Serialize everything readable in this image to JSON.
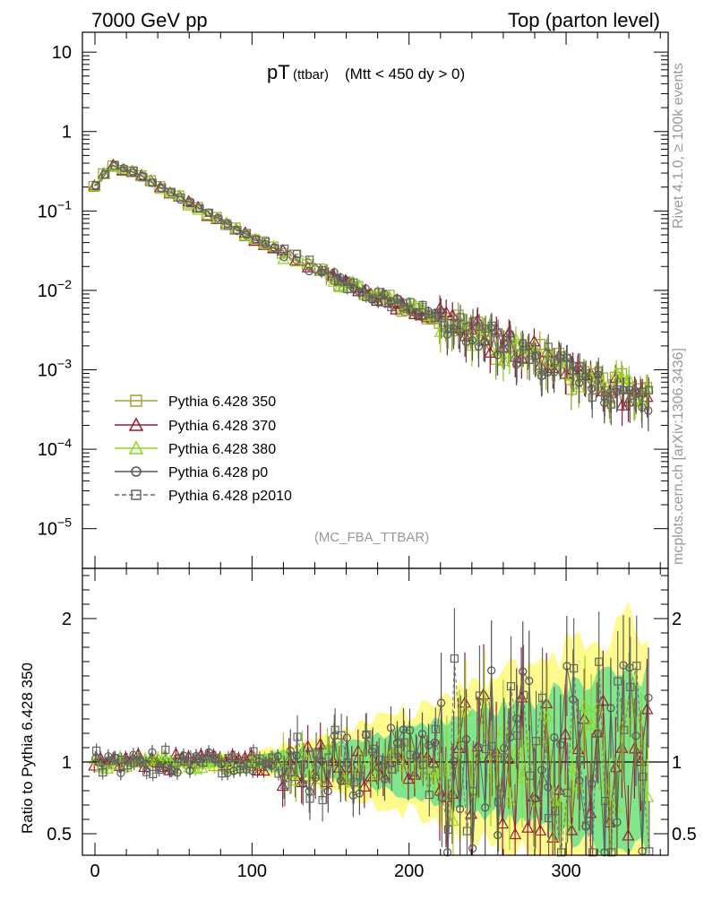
{
  "header": {
    "left": "7000 GeV pp",
    "right": "Top (parton level)"
  },
  "side_texts": {
    "rivet": "Rivet 4.1.0, ≥ 100k events",
    "mcplots": "mcplots.cern.ch [arXiv:1306.3436]"
  },
  "plot": {
    "title_main": "pT",
    "title_sub": "(ttbar)",
    "title_cut": "(Mtt < 450 dy > 0)",
    "analysis_tag": "(MC_FBA_TTBAR)"
  },
  "legend": [
    {
      "label": "Pythia 6.428 350",
      "color": "#a2a238",
      "marker": "square",
      "dash": false
    },
    {
      "label": "Pythia 6.428 370",
      "color": "#9b1b30",
      "marker": "triangle",
      "dash": false
    },
    {
      "label": "Pythia 6.428 380",
      "color": "#8fd61b",
      "marker": "triangle",
      "dash": false
    },
    {
      "label": "Pythia 6.428 p0",
      "color": "#555555",
      "marker": "circle",
      "dash": false
    },
    {
      "label": "Pythia 6.428 p2010",
      "color": "#666666",
      "marker": "square",
      "dash": true
    }
  ],
  "chart_data": {
    "type": "scatter",
    "title": "pT (ttbar) (Mtt < 450 dy > 0)",
    "xlabel": "",
    "ylabel_top": "",
    "ylabel_ratio": "Ratio to Pythia 6.428 350",
    "xlim": [
      -8,
      365
    ],
    "ylim_top_log10": [
      -5.5,
      1.25
    ],
    "ylim_ratio": [
      0.35,
      2.35
    ],
    "x_ticks": [
      0,
      100,
      200,
      300
    ],
    "x_tick_labels": [
      "0",
      "100",
      "200",
      "300"
    ],
    "y_ticks_top_log10": [
      1,
      0,
      -1,
      -2,
      -3,
      -4,
      -5
    ],
    "y_tick_labels_top": [
      "10",
      "1",
      "10^-1",
      "10^-2",
      "10^-3",
      "10^-4",
      "10^-5"
    ],
    "y_ticks_ratio": [
      0.5,
      1,
      2
    ],
    "y_tick_labels_ratio": [
      "0.5",
      "1",
      "2"
    ],
    "reference_x": [
      0,
      10,
      20,
      30,
      40,
      50,
      60,
      80,
      100,
      120,
      140,
      160,
      180,
      200,
      220,
      240,
      260,
      280,
      300,
      320,
      340,
      355
    ],
    "reference_y": [
      0.2,
      0.37,
      0.33,
      0.27,
      0.21,
      0.165,
      0.125,
      0.075,
      0.046,
      0.03,
      0.019,
      0.012,
      0.0085,
      0.0062,
      0.0048,
      0.0033,
      0.0022,
      0.0016,
      0.0011,
      0.0007,
      0.0006,
      0.0005
    ],
    "series_ratio_amplitude": [
      0.04,
      0.06,
      0.05,
      0.08,
      0.09
    ],
    "band_rel_unc_x": [
      0,
      100,
      150,
      200,
      250,
      300,
      355
    ],
    "band_rel_unc_yellow": [
      0.03,
      0.06,
      0.2,
      0.35,
      0.55,
      0.8,
      1.0
    ],
    "band_rel_unc_green": [
      0.02,
      0.04,
      0.12,
      0.22,
      0.35,
      0.5,
      0.65
    ]
  }
}
